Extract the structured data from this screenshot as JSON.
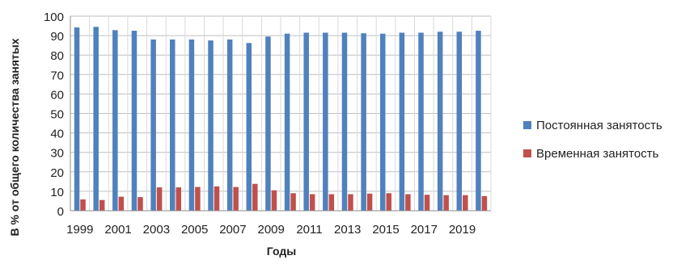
{
  "chart_data": {
    "type": "bar",
    "title": "",
    "xlabel": "Годы",
    "ylabel": "В % от общего количества занятых",
    "ylim": [
      0,
      100
    ],
    "y_ticks": [
      0,
      10,
      20,
      30,
      40,
      50,
      60,
      70,
      80,
      90,
      100
    ],
    "categories": [
      "1999",
      "2000",
      "2001",
      "2002",
      "2003",
      "2004",
      "2005",
      "2006",
      "2007",
      "2008",
      "2009",
      "2010",
      "2011",
      "2012",
      "2013",
      "2014",
      "2015",
      "2016",
      "2017",
      "2018",
      "2019",
      "2020"
    ],
    "x_tick_labels": [
      "1999",
      "2001",
      "2003",
      "2005",
      "2007",
      "2009",
      "2011",
      "2013",
      "2015",
      "2017",
      "2019"
    ],
    "grid": true,
    "legend_position": "right",
    "series": [
      {
        "name": "Постоянная занятость",
        "color": "#4f81bd",
        "values": [
          94.2,
          94.5,
          92.8,
          92.5,
          88.0,
          88.0,
          88.0,
          87.5,
          88.0,
          86.2,
          89.5,
          91.0,
          91.5,
          91.5,
          91.5,
          91.2,
          91.0,
          91.5,
          91.5,
          92.0,
          92.0,
          92.5
        ]
      },
      {
        "name": "Временная занятость",
        "color": "#c0504d",
        "values": [
          5.8,
          5.5,
          7.2,
          7.0,
          12.0,
          12.0,
          12.2,
          12.5,
          12.2,
          13.8,
          10.5,
          9.0,
          8.5,
          8.5,
          8.5,
          8.8,
          9.0,
          8.5,
          8.2,
          8.0,
          8.0,
          7.5
        ]
      }
    ]
  }
}
